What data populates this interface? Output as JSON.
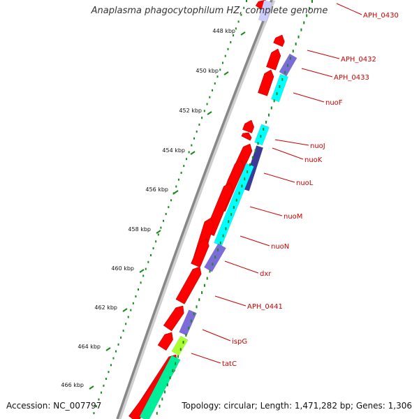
{
  "title": "Anaplasma phagocytophilum HZ, complete genome",
  "accession": "Accession: NC_007797",
  "topology": "Topology: circular; Length: 1,471,282 bp; Genes: 1,306",
  "ticks": [
    "448 kbp",
    "450 kbp",
    "452 kbp",
    "454 kbp",
    "456 kbp",
    "458 kbp",
    "460 kbp",
    "462 kbp",
    "464 kbp",
    "466 kbp"
  ],
  "gene_labels": [
    "APH_0430",
    "APH_0432",
    "APH_0433",
    "nuoF",
    "nuoJ",
    "nuoK",
    "nuoL",
    "nuoM",
    "nuoN",
    "dxr",
    "APH_0441",
    "ispG",
    "tatC"
  ],
  "colors": {
    "forward_cds": "#ff0000",
    "cog_cyan": "#00ffff",
    "cog_blue": "#7b6cd9",
    "cog_darkblue": "#3b3a99",
    "cog_green": "#00ee99",
    "cog_yellowgreen": "#aaff33",
    "tick_green": "#1a8a1a",
    "label_red": "#cc0000",
    "backbone": "#888888"
  }
}
